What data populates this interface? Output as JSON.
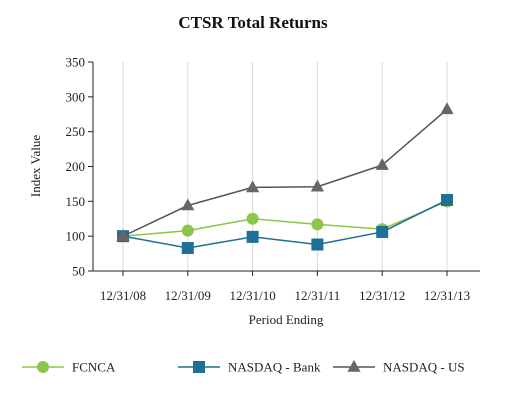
{
  "chart_data": {
    "type": "line",
    "title": "CTSR Total Returns",
    "xlabel": "Period Ending",
    "ylabel": "Index Value",
    "categories": [
      "12/31/08",
      "12/31/09",
      "12/31/10",
      "12/31/11",
      "12/31/12",
      "12/31/13"
    ],
    "ylim": [
      50,
      350
    ],
    "yticks": [
      50,
      100,
      150,
      200,
      250,
      300,
      350
    ],
    "grid": "vertical",
    "legend_position": "bottom",
    "series": [
      {
        "name": "FCNCA",
        "marker": "circle",
        "color": "#8cc54a",
        "line_color": "#8cc54a",
        "values": [
          100,
          108,
          125,
          117,
          110,
          150
        ]
      },
      {
        "name": "NASDAQ - Bank",
        "marker": "square",
        "color": "#1f6f96",
        "line_color": "#1f6f96",
        "values": [
          100,
          83,
          99,
          88,
          106,
          152
        ]
      },
      {
        "name": "NASDAQ - US",
        "marker": "triangle",
        "color": "#666666",
        "line_color": "#555555",
        "values": [
          100,
          144,
          170,
          171,
          202,
          282
        ]
      }
    ]
  }
}
